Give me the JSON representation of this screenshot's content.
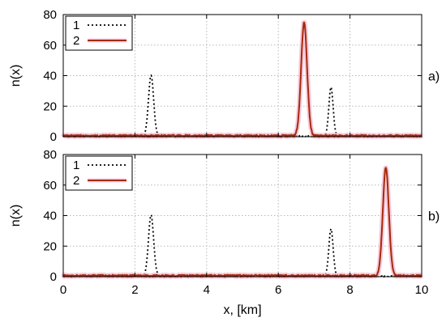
{
  "chart_data": [
    {
      "type": "line",
      "panel_label": "a)",
      "xlabel": "",
      "ylabel": "n(x)",
      "xlim": [
        0,
        10
      ],
      "ylim": [
        0,
        80
      ],
      "xticks": [],
      "yticks": [
        0,
        20,
        40,
        60,
        80
      ],
      "grid": true,
      "legend_position": "top-left",
      "series": [
        {
          "name": "1",
          "style": "dotted",
          "color": "#000000",
          "peaks": [
            {
              "center": 2.45,
              "height": 40,
              "halfwidth": 0.12
            },
            {
              "center": 7.47,
              "height": 32,
              "halfwidth": 0.1
            }
          ]
        },
        {
          "name": "2",
          "style": "solid",
          "color": "#a52a0a",
          "peaks": [
            {
              "center": 6.72,
              "height": 74,
              "halfwidth": 0.14
            }
          ]
        }
      ]
    },
    {
      "type": "line",
      "panel_label": "b)",
      "xlabel": "x, [km]",
      "ylabel": "n(x)",
      "xlim": [
        0,
        10
      ],
      "ylim": [
        0,
        80
      ],
      "xticks": [
        0,
        2,
        4,
        6,
        8,
        10
      ],
      "yticks": [
        0,
        20,
        40,
        60,
        80
      ],
      "grid": true,
      "legend_position": "top-left",
      "series": [
        {
          "name": "1",
          "style": "dotted",
          "color": "#000000",
          "peaks": [
            {
              "center": 2.45,
              "height": 40,
              "halfwidth": 0.12
            },
            {
              "center": 7.47,
              "height": 31,
              "halfwidth": 0.1
            }
          ]
        },
        {
          "name": "2",
          "style": "solid",
          "color": "#a52a0a",
          "peaks": [
            {
              "center": 9.0,
              "height": 71,
              "halfwidth": 0.14
            }
          ]
        }
      ]
    }
  ],
  "colors": {
    "series_2": "#a52a0a",
    "series_2_halo": "#f4b8d0",
    "grid": "#b8b8b8"
  }
}
